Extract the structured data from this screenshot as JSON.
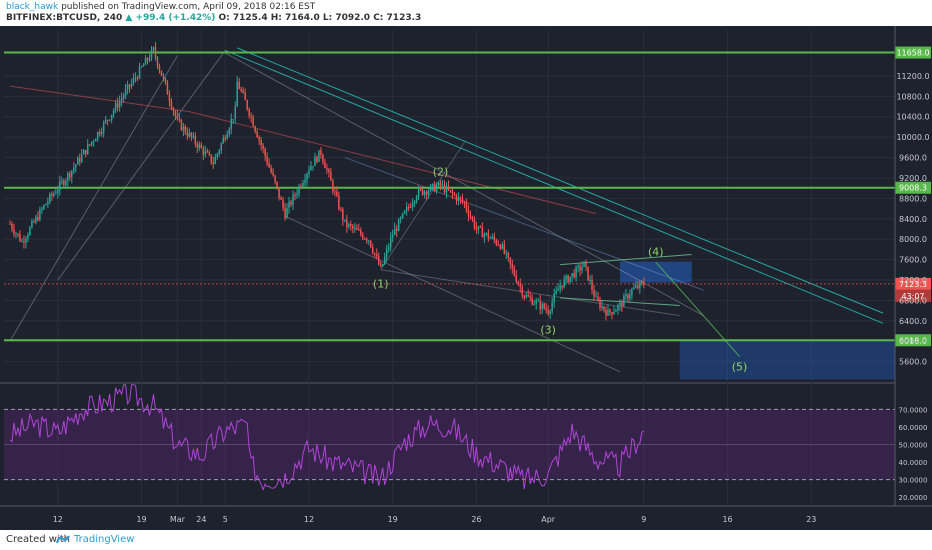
{
  "header": {
    "author": "black_hawk",
    "published": "published on TradingView.com, April 09, 2018 02:16 EST",
    "symbol": "BITFINEX:BTCUSD, 240",
    "change": "▲ +99.4 (+1.42%)",
    "ohlc": "O: 7125.4  H: 7164.0  L: 7092.0  C: 7123.3"
  },
  "footer": {
    "created": "Created with",
    "brand": "TradingView",
    "logo_icon": "tradingview-logo-icon"
  },
  "colors": {
    "up": "#26a69a",
    "down": "#ef5350",
    "rsi": "#b045d8",
    "level": "#59b84a"
  },
  "chart_data": [
    {
      "type": "candlestick",
      "symbol": "BITFINEX:BTCUSD",
      "interval": "240",
      "ylim": [
        5200,
        12100
      ],
      "y_ticks": [
        5600,
        6000,
        6400,
        6800,
        7200,
        7600,
        8000,
        8400,
        8800,
        9200,
        9600,
        10000,
        10400,
        10800,
        11200
      ],
      "x_ticks": [
        "12",
        "19",
        "24",
        "Mar",
        "5",
        "12",
        "19",
        "26",
        "Apr",
        "9",
        "16",
        "23"
      ],
      "price_path": [
        [
          "Feb 08",
          8300
        ],
        [
          "Feb 09",
          7950
        ],
        [
          "Feb 11",
          8700
        ],
        [
          "Feb 13",
          9300
        ],
        [
          "Feb 16",
          10300
        ],
        [
          "Feb 18",
          11000
        ],
        [
          "Feb 20",
          11700
        ],
        [
          "Feb 22",
          10300
        ],
        [
          "Feb 25",
          9500
        ],
        [
          "Feb 27",
          10600
        ],
        [
          "Mar 01",
          10900
        ],
        [
          "Mar 03",
          11400
        ],
        [
          "Mar 05",
          11650
        ],
        [
          "Mar 07",
          10500
        ],
        [
          "Mar 09",
          9200
        ],
        [
          "Mar 10",
          8500
        ],
        [
          "Mar 12",
          9400
        ],
        [
          "Mar 13",
          9700
        ],
        [
          "Mar 15",
          8300
        ],
        [
          "Mar 17",
          8000
        ],
        [
          "Mar 18",
          7400
        ],
        [
          "Mar 19",
          8100
        ],
        [
          "Mar 21",
          8900
        ],
        [
          "Mar 23",
          9050
        ],
        [
          "Mar 25",
          8700
        ],
        [
          "Mar 26",
          8200
        ],
        [
          "Mar 28",
          7900
        ],
        [
          "Mar 30",
          6900
        ],
        [
          "Apr 01",
          6600
        ],
        [
          "Apr 02",
          7100
        ],
        [
          "Apr 04",
          7500
        ],
        [
          "Apr 05",
          6800
        ],
        [
          "Apr 06",
          6550
        ],
        [
          "Apr 07",
          6700
        ],
        [
          "Apr 08",
          7000
        ],
        [
          "Apr 09",
          7123
        ]
      ],
      "levels": [
        {
          "label": "11658.0",
          "value": 11658
        },
        {
          "label": "9008.3",
          "value": 9008
        },
        {
          "label": "6018.0",
          "value": 6018
        }
      ],
      "current_price": {
        "label": "7123.3",
        "value": 7123.3
      },
      "countdown_label": "43:07",
      "wave_labels": [
        {
          "label": "(1)",
          "date": "Mar 18",
          "price": 7050
        },
        {
          "label": "(2)",
          "date": "Mar 23",
          "price": 9250
        },
        {
          "label": "(3)",
          "date": "Apr 01",
          "price": 6150
        },
        {
          "label": "(4)",
          "date": "Apr 10",
          "price": 7680
        },
        {
          "label": "(5)",
          "date": "Apr 17",
          "price": 5430
        }
      ]
    },
    {
      "type": "line",
      "name": "RSI",
      "ylim": [
        15,
        85
      ],
      "y_ticks": [
        20,
        30,
        40,
        50,
        60,
        70
      ],
      "y_tick_labels": [
        "20.0000",
        "30.0000",
        "40.0000",
        "50.0000",
        "60.0000",
        "70.0000"
      ],
      "bands": [
        30,
        70
      ],
      "values": [
        [
          "Feb 08",
          55
        ],
        [
          "Feb 10",
          62
        ],
        [
          "Feb 12",
          57
        ],
        [
          "Feb 14",
          70
        ],
        [
          "Feb 16",
          74
        ],
        [
          "Feb 18",
          79
        ],
        [
          "Feb 20",
          72
        ],
        [
          "Feb 22",
          50
        ],
        [
          "Feb 24",
          44
        ],
        [
          "Feb 26",
          58
        ],
        [
          "Feb 28",
          62
        ],
        [
          "Mar 02",
          66
        ],
        [
          "Mar 04",
          70
        ],
        [
          "Mar 06",
          52
        ],
        [
          "Mar 08",
          30
        ],
        [
          "Mar 10",
          32
        ],
        [
          "Mar 12",
          48
        ],
        [
          "Mar 14",
          40
        ],
        [
          "Mar 16",
          36
        ],
        [
          "Mar 18",
          30
        ],
        [
          "Mar 20",
          52
        ],
        [
          "Mar 22",
          62
        ],
        [
          "Mar 24",
          60
        ],
        [
          "Mar 26",
          45
        ],
        [
          "Mar 28",
          38
        ],
        [
          "Mar 30",
          30
        ],
        [
          "Apr 01",
          33
        ],
        [
          "Apr 03",
          58
        ],
        [
          "Apr 05",
          42
        ],
        [
          "Apr 07",
          38
        ],
        [
          "Apr 09",
          58
        ]
      ]
    }
  ]
}
